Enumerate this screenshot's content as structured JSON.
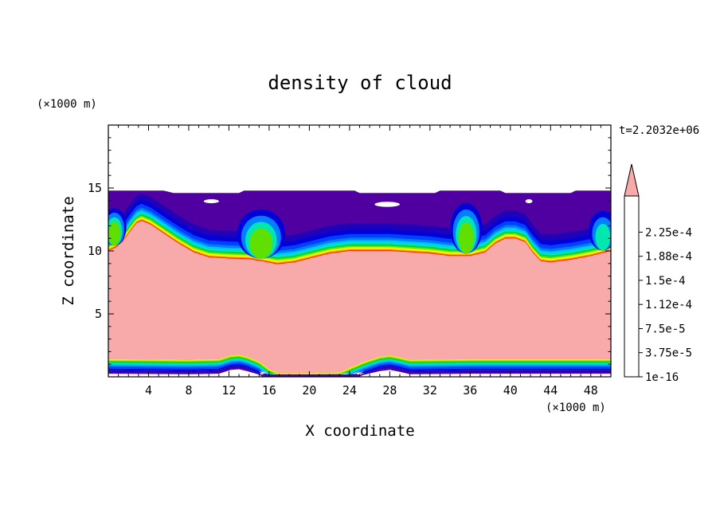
{
  "chart_data": {
    "type": "heatmap",
    "title": "density of cloud",
    "xlabel": "X coordinate",
    "ylabel": "Z coordinate",
    "x_unit": "(×1000 m)",
    "z_unit": "(×1000 m)",
    "time_label": "t=2.2032e+06",
    "xlim": [
      0,
      50
    ],
    "zlim": [
      0,
      20
    ],
    "x_ticks": [
      "4",
      "8",
      "12",
      "16",
      "20",
      "24",
      "28",
      "32",
      "36",
      "40",
      "44",
      "48"
    ],
    "x_tick_values": [
      4,
      8,
      12,
      16,
      20,
      24,
      28,
      32,
      36,
      40,
      44,
      48
    ],
    "z_ticks": [
      "5",
      "10",
      "15"
    ],
    "z_tick_values": [
      5,
      10,
      15
    ],
    "colorbar": {
      "tick_labels": [
        "1e-16",
        "3.75e-5",
        "7.5e-5",
        "1.12e-4",
        "1.5e-4",
        "1.88e-4",
        "2.25e-4"
      ],
      "tick_levels": [
        0,
        2,
        4,
        6,
        8,
        10,
        12
      ],
      "colors": [
        "#5000a0",
        "#2000b8",
        "#0000d8",
        "#0040ff",
        "#0080ff",
        "#00c8ff",
        "#00e8b0",
        "#00d040",
        "#60e000",
        "#c8f000",
        "#ffff00",
        "#ffc000",
        "#ff8000",
        "#ff4000",
        "#f00000"
      ],
      "over_color": "#f8aaaa"
    },
    "fields": {
      "cloud_top": [
        [
          0,
          14.8
        ],
        [
          5.5,
          14.8
        ],
        [
          6.5,
          14.6
        ],
        [
          13,
          14.6
        ],
        [
          13.5,
          14.8
        ],
        [
          24.5,
          14.8
        ],
        [
          25,
          14.6
        ],
        [
          32.5,
          14.6
        ],
        [
          33,
          14.8
        ],
        [
          39,
          14.8
        ],
        [
          39.5,
          14.6
        ],
        [
          46,
          14.6
        ],
        [
          46.5,
          14.8
        ],
        [
          50,
          14.8
        ]
      ],
      "upper_boundary": [
        [
          0,
          10
        ],
        [
          0.8,
          10.3
        ],
        [
          1.5,
          10.8
        ],
        [
          2.2,
          11.6
        ],
        [
          2.8,
          12.2
        ],
        [
          3.3,
          12.4
        ],
        [
          4.2,
          12.1
        ],
        [
          5.5,
          11.4
        ],
        [
          7,
          10.6
        ],
        [
          8.5,
          9.9
        ],
        [
          10,
          9.5
        ],
        [
          12,
          9.4
        ],
        [
          14,
          9.35
        ],
        [
          15.5,
          9.15
        ],
        [
          16.8,
          8.95
        ],
        [
          18.5,
          9.1
        ],
        [
          20,
          9.4
        ],
        [
          22,
          9.8
        ],
        [
          24,
          10
        ],
        [
          28,
          10
        ],
        [
          32,
          9.8
        ],
        [
          34,
          9.6
        ],
        [
          36,
          9.6
        ],
        [
          37.5,
          9.9
        ],
        [
          38.5,
          10.6
        ],
        [
          39.5,
          11
        ],
        [
          40.5,
          11
        ],
        [
          41.5,
          10.7
        ],
        [
          42.2,
          9.9
        ],
        [
          43,
          9.2
        ],
        [
          44,
          9.1
        ],
        [
          46,
          9.3
        ],
        [
          48,
          9.6
        ],
        [
          50,
          10
        ]
      ],
      "lower_boundary": [
        [
          0,
          1.4
        ],
        [
          8,
          1.35
        ],
        [
          11,
          1.4
        ],
        [
          12.2,
          1.7
        ],
        [
          13,
          1.75
        ],
        [
          13.8,
          1.6
        ],
        [
          15,
          1.2
        ],
        [
          16,
          0.6
        ],
        [
          17,
          0.3
        ],
        [
          20,
          0.3
        ],
        [
          23,
          0.35
        ],
        [
          24,
          0.7
        ],
        [
          25.5,
          1.2
        ],
        [
          27,
          1.6
        ],
        [
          28,
          1.7
        ],
        [
          29,
          1.55
        ],
        [
          30,
          1.35
        ],
        [
          36,
          1.4
        ],
        [
          44,
          1.4
        ],
        [
          50,
          1.4
        ]
      ],
      "clear_patches": [
        [
          [
            9.5,
            13.8
          ],
          [
            10.3,
            14.1
          ],
          [
            11,
            13.8
          ]
        ],
        [
          [
            26.5,
            13.5
          ],
          [
            27.5,
            13.9
          ],
          [
            28.5,
            13.6
          ],
          [
            29,
            13.5
          ]
        ],
        [
          [
            41.5,
            13.9
          ],
          [
            42.2,
            14
          ]
        ]
      ]
    }
  }
}
